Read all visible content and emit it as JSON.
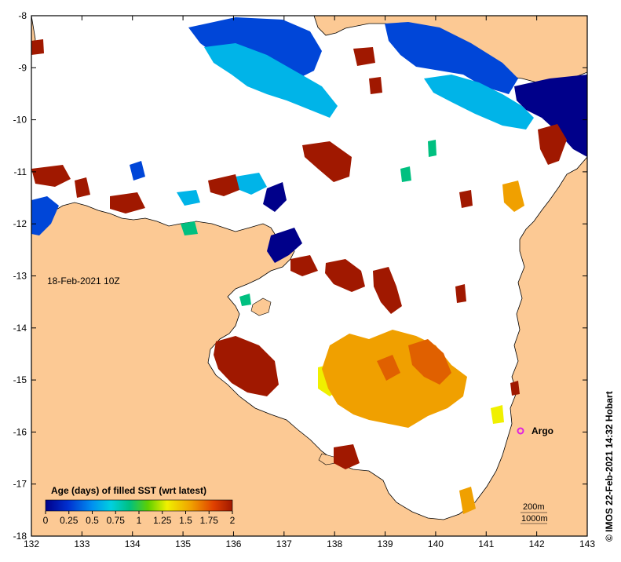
{
  "map": {
    "date_label": "18-Feb-2021 10Z",
    "credit": "© IMOS 22-Feb-2021 14:32 Hobart",
    "x_ticks": [
      "132",
      "133",
      "134",
      "135",
      "136",
      "137",
      "138",
      "139",
      "140",
      "141",
      "142",
      "143"
    ],
    "y_ticks": [
      "-8",
      "-9",
      "-10",
      "-11",
      "-12",
      "-13",
      "-14",
      "-15",
      "-16",
      "-17",
      "-18"
    ],
    "legend": {
      "title": "Age (days) of filled SST (wrt latest)",
      "ticks": [
        "0",
        "0.25",
        "0.5",
        "0.75",
        "1",
        "1.25",
        "1.5",
        "1.75",
        "2"
      ]
    },
    "contours": {
      "c200": "200m",
      "c1000": "1000m"
    },
    "argo_label": "Argo",
    "colors": {
      "land": "#fcc994",
      "ocean": "#ffffff",
      "age_0": "#00008a",
      "age_025": "#0046d8",
      "age_05": "#00b4e8",
      "age_075": "#00c080",
      "age_1": "#50d000",
      "age_125": "#f0f000",
      "age_15": "#f0a000",
      "age_175": "#e06000",
      "age_2": "#a01800",
      "argo": "#e020e0"
    }
  }
}
